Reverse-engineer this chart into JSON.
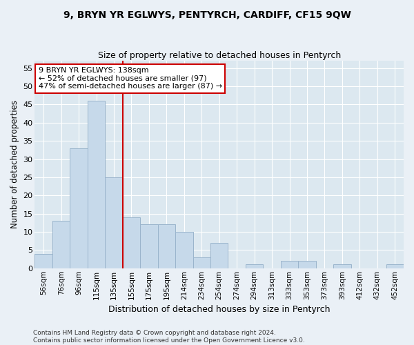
{
  "title": "9, BRYN YR EGLWYS, PENTYRCH, CARDIFF, CF15 9QW",
  "subtitle": "Size of property relative to detached houses in Pentyrch",
  "xlabel": "Distribution of detached houses by size in Pentyrch",
  "ylabel": "Number of detached properties",
  "categories": [
    "56sqm",
    "76sqm",
    "96sqm",
    "115sqm",
    "135sqm",
    "155sqm",
    "175sqm",
    "195sqm",
    "214sqm",
    "234sqm",
    "254sqm",
    "274sqm",
    "294sqm",
    "313sqm",
    "333sqm",
    "353sqm",
    "373sqm",
    "393sqm",
    "412sqm",
    "432sqm",
    "452sqm"
  ],
  "values": [
    4,
    13,
    33,
    46,
    25,
    14,
    12,
    12,
    10,
    3,
    7,
    0,
    1,
    0,
    2,
    2,
    0,
    1,
    0,
    0,
    1
  ],
  "bar_color": "#c6d9ea",
  "bar_edge_color": "#9ab4cc",
  "property_line_x": 4.5,
  "property_line_color": "#cc0000",
  "annotation_text": "9 BRYN YR EGLWYS: 138sqm\n← 52% of detached houses are smaller (97)\n47% of semi-detached houses are larger (87) →",
  "annotation_box_edge_color": "#cc0000",
  "ylim": [
    0,
    57
  ],
  "yticks": [
    0,
    5,
    10,
    15,
    20,
    25,
    30,
    35,
    40,
    45,
    50,
    55
  ],
  "background_color": "#dce8f0",
  "grid_color": "#ffffff",
  "fig_bg_color": "#eaf0f6",
  "footer_line1": "Contains HM Land Registry data © Crown copyright and database right 2024.",
  "footer_line2": "Contains public sector information licensed under the Open Government Licence v3.0."
}
